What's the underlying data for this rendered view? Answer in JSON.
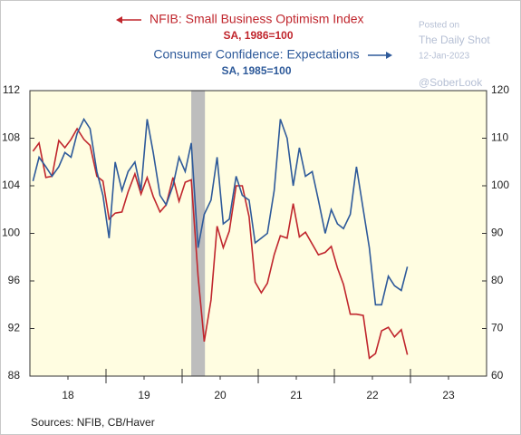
{
  "chart_data": {
    "type": "line",
    "series": [
      {
        "name": "NFIB: Small Business Optimism Index",
        "note": "SA, 1986=100",
        "color": "#c0262d",
        "axis": "y",
        "values": [
          106.9,
          107.6,
          104.7,
          104.8,
          107.8,
          107.2,
          107.9,
          108.8,
          107.9,
          107.4,
          104.8,
          104.4,
          101.2,
          101.7,
          101.8,
          103.5,
          105.0,
          103.3,
          104.7,
          103.1,
          101.8,
          102.4,
          104.7,
          102.7,
          104.3,
          104.5,
          96.4,
          90.9,
          94.4,
          100.6,
          98.8,
          100.2,
          104.0,
          104.0,
          101.4,
          95.9,
          95.0,
          95.8,
          98.2,
          99.8,
          99.6,
          102.5,
          99.7,
          100.1,
          99.1,
          98.2,
          98.4,
          98.9,
          97.1,
          95.7,
          93.2,
          93.2,
          93.1,
          89.5,
          89.9,
          91.8,
          92.1,
          91.3,
          91.9,
          89.8
        ]
      },
      {
        "name": "Consumer Confidence: Expectations",
        "note": "SA, 1985=100",
        "color": "#2e5a9a",
        "axis": "y2",
        "values": [
          101,
          106,
          104,
          102,
          104,
          107,
          106,
          111,
          114,
          112,
          103,
          98,
          89,
          105,
          99,
          103,
          105,
          99,
          114,
          107,
          98,
          96,
          100,
          106,
          103,
          109,
          87,
          94,
          97,
          106,
          92,
          93,
          102,
          98,
          97,
          88,
          89,
          90,
          99,
          114,
          110,
          100,
          108,
          102,
          103,
          97,
          90,
          95,
          92,
          91,
          94,
          104,
          95,
          87,
          75,
          75,
          81,
          79,
          78,
          83
        ]
      }
    ],
    "x": [
      2018.04,
      2018.12,
      2018.21,
      2018.29,
      2018.38,
      2018.46,
      2018.54,
      2018.62,
      2018.71,
      2018.79,
      2018.88,
      2018.96,
      2019.04,
      2019.12,
      2019.21,
      2019.29,
      2019.38,
      2019.46,
      2019.54,
      2019.62,
      2019.71,
      2019.79,
      2019.88,
      2019.96,
      2020.04,
      2020.12,
      2020.21,
      2020.29,
      2020.38,
      2020.46,
      2020.54,
      2020.62,
      2020.71,
      2020.79,
      2020.88,
      2020.96,
      2021.04,
      2021.12,
      2021.21,
      2021.29,
      2021.38,
      2021.46,
      2021.54,
      2021.62,
      2021.71,
      2021.79,
      2021.88,
      2021.96,
      2022.04,
      2022.12,
      2022.21,
      2022.29,
      2022.38,
      2022.46,
      2022.54,
      2022.62,
      2022.71,
      2022.79,
      2022.88,
      2022.96
    ],
    "xlim": [
      2018,
      2024
    ],
    "xticks": [
      {
        "value": 2018.5,
        "label": "18"
      },
      {
        "value": 2019.5,
        "label": "19"
      },
      {
        "value": 2020.5,
        "label": "20"
      },
      {
        "value": 2021.5,
        "label": "21"
      },
      {
        "value": 2022.5,
        "label": "22"
      },
      {
        "value": 2023.5,
        "label": "23"
      }
    ],
    "ylim": [
      88,
      112
    ],
    "yticks": [
      88,
      92,
      96,
      100,
      104,
      108,
      112
    ],
    "y2lim": [
      60,
      120
    ],
    "y2ticks": [
      60,
      70,
      80,
      90,
      100,
      110,
      120
    ],
    "recession": [
      2020.12,
      2020.3
    ],
    "watermark": [
      "Posted on",
      "The Daily Shot",
      "12-Jan-2023",
      "@SoberLook"
    ],
    "source": "Sources:  NFIB, CB/Haver"
  }
}
